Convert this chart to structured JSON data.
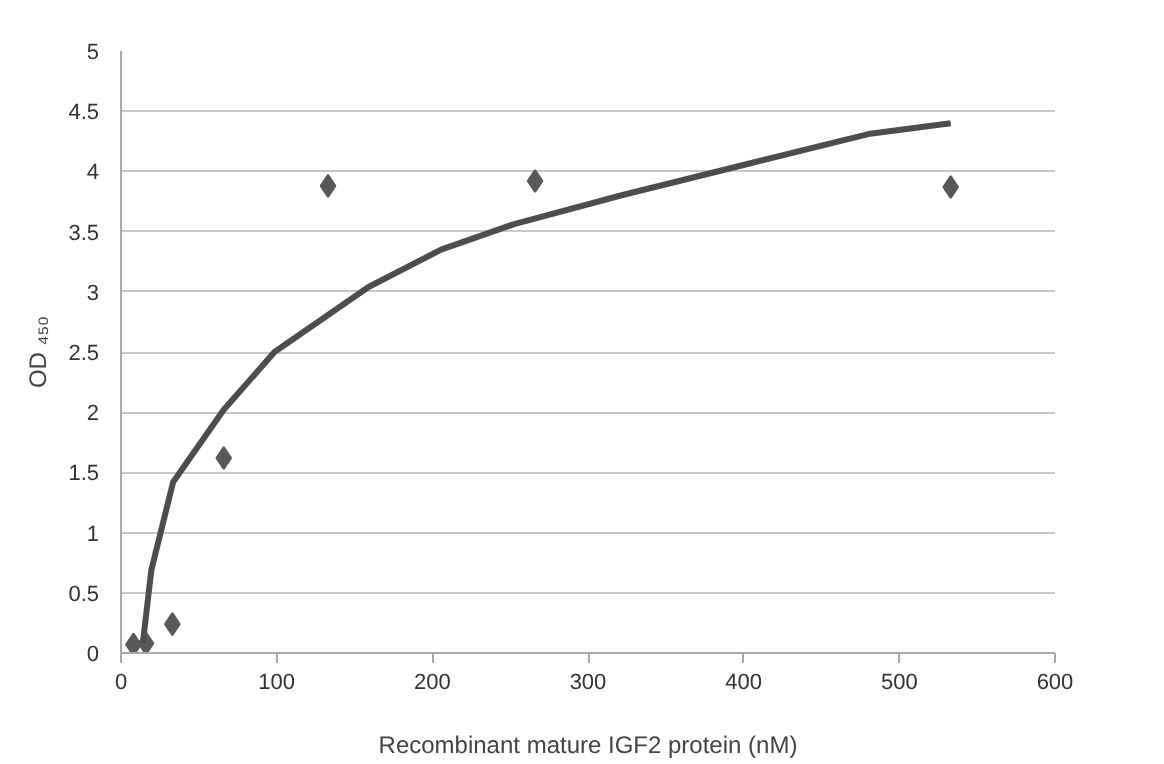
{
  "chart_data": {
    "type": "scatter",
    "xlabel": "Recombinant mature IGF2 protein (nM)",
    "ylabel": "OD ₄₅₀",
    "xlim": [
      0,
      600
    ],
    "ylim": [
      0,
      5
    ],
    "xticks": [
      0,
      100,
      200,
      300,
      400,
      500,
      600
    ],
    "yticks": [
      0,
      0.5,
      1,
      1.5,
      2,
      2.5,
      3,
      3.5,
      4,
      4.5,
      5
    ],
    "grid": "y",
    "series": [
      {
        "marker": "diamond",
        "color": "#595959",
        "x": [
          8,
          16,
          33,
          66,
          133,
          266,
          533
        ],
        "values": [
          0.07,
          0.08,
          0.24,
          1.62,
          3.88,
          3.92,
          3.87
        ]
      },
      {
        "type": "line",
        "color": "#4d4d4d",
        "line_style": "solid",
        "x": [
          14,
          19.5,
          33.5,
          66,
          98.6,
          159,
          205.6,
          252,
          321,
          405,
          480,
          533
        ],
        "values": [
          0.08,
          0.69,
          1.42,
          2.02,
          2.5,
          3.04,
          3.35,
          3.56,
          3.8,
          4.07,
          4.31,
          4.4
        ]
      }
    ]
  }
}
